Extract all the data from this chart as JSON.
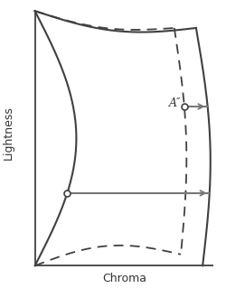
{
  "xlabel": "Chroma",
  "ylabel": "Lightness",
  "bg_color": "#ffffff",
  "line_color": "#404040",
  "dashed_color": "#404040",
  "figsize": [
    2.51,
    3.19
  ],
  "dpi": 100,
  "annotation_text": "A″"
}
